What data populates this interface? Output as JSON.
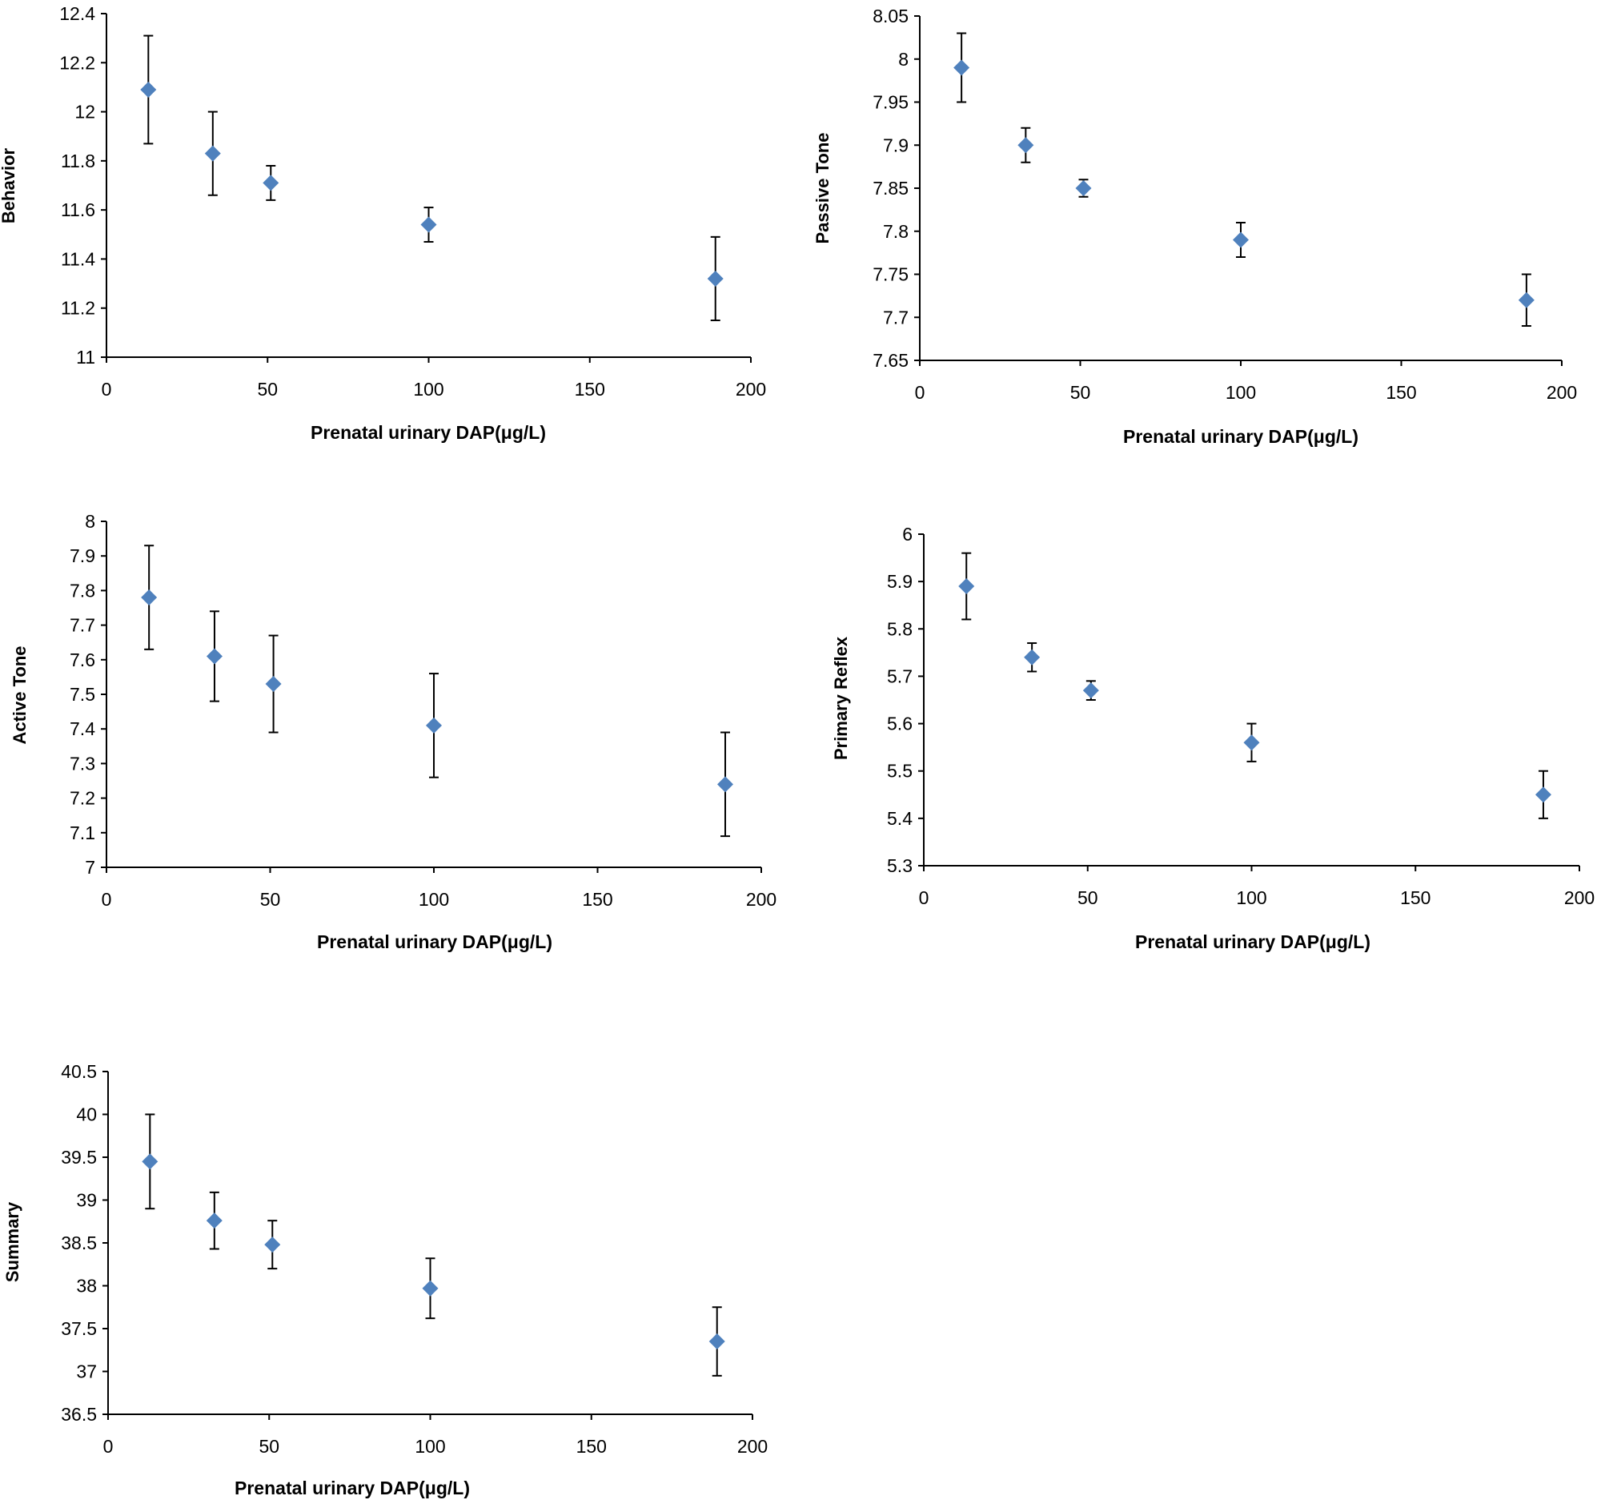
{
  "chart_data": [
    {
      "type": "scatter",
      "title": "",
      "xlabel": "Prenatal urinary DAP(μg/L)",
      "ylabel": "Behavior",
      "xlim": [
        0,
        200
      ],
      "ylim": [
        11,
        12.4
      ],
      "xticks": [
        0,
        50,
        100,
        150,
        200
      ],
      "yticks": [
        "11",
        "11.2",
        "11.4",
        "11.6",
        "11.8",
        "12",
        "12.2",
        "12.4"
      ],
      "marker_color": "#4f81bd",
      "points": [
        {
          "x": 13,
          "y": 12.09,
          "err": 0.22
        },
        {
          "x": 33,
          "y": 11.83,
          "err": 0.17
        },
        {
          "x": 51,
          "y": 11.71,
          "err": 0.07
        },
        {
          "x": 100,
          "y": 11.54,
          "err": 0.07
        },
        {
          "x": 189,
          "y": 11.32,
          "err": 0.17
        }
      ]
    },
    {
      "type": "scatter",
      "title": "",
      "xlabel": "Prenatal urinary DAP(μg/L)",
      "ylabel": "Passive Tone",
      "xlim": [
        0,
        200
      ],
      "ylim": [
        7.65,
        8.05
      ],
      "xticks": [
        0,
        50,
        100,
        150,
        200
      ],
      "yticks": [
        "7.65",
        "7.7",
        "7.75",
        "7.8",
        "7.85",
        "7.9",
        "7.95",
        "8",
        "8.05"
      ],
      "marker_color": "#4f81bd",
      "points": [
        {
          "x": 13,
          "y": 7.99,
          "err": 0.04
        },
        {
          "x": 33,
          "y": 7.9,
          "err": 0.02
        },
        {
          "x": 51,
          "y": 7.85,
          "err": 0.01
        },
        {
          "x": 100,
          "y": 7.79,
          "err": 0.02
        },
        {
          "x": 189,
          "y": 7.72,
          "err": 0.03
        }
      ]
    },
    {
      "type": "scatter",
      "title": "",
      "xlabel": "Prenatal urinary DAP(μg/L)",
      "ylabel": "Active Tone",
      "xlim": [
        0,
        200
      ],
      "ylim": [
        7,
        8
      ],
      "xticks": [
        0,
        50,
        100,
        150,
        200
      ],
      "yticks": [
        "7",
        "7.1",
        "7.2",
        "7.3",
        "7.4",
        "7.5",
        "7.6",
        "7.7",
        "7.8",
        "7.9",
        "8"
      ],
      "marker_color": "#4f81bd",
      "points": [
        {
          "x": 13,
          "y": 7.78,
          "err": 0.15
        },
        {
          "x": 33,
          "y": 7.61,
          "err": 0.13
        },
        {
          "x": 51,
          "y": 7.53,
          "err": 0.14
        },
        {
          "x": 100,
          "y": 7.41,
          "err": 0.15
        },
        {
          "x": 189,
          "y": 7.24,
          "err": 0.15
        }
      ]
    },
    {
      "type": "scatter",
      "title": "",
      "xlabel": "Prenatal urinary DAP(μg/L)",
      "ylabel": "Primary Reflex",
      "xlim": [
        0,
        200
      ],
      "ylim": [
        5.3,
        6
      ],
      "xticks": [
        0,
        50,
        100,
        150,
        200
      ],
      "yticks": [
        "5.3",
        "5.4",
        "5.5",
        "5.6",
        "5.7",
        "5.8",
        "5.9",
        "6"
      ],
      "marker_color": "#4f81bd",
      "points": [
        {
          "x": 13,
          "y": 5.89,
          "err": 0.07
        },
        {
          "x": 33,
          "y": 5.74,
          "err": 0.03
        },
        {
          "x": 51,
          "y": 5.67,
          "err": 0.02
        },
        {
          "x": 100,
          "y": 5.56,
          "err": 0.04
        },
        {
          "x": 189,
          "y": 5.45,
          "err": 0.05
        }
      ]
    },
    {
      "type": "scatter",
      "title": "",
      "xlabel": "Prenatal urinary DAP(μg/L)",
      "ylabel": "Summary",
      "xlim": [
        0,
        200
      ],
      "ylim": [
        36.5,
        40.5
      ],
      "xticks": [
        0,
        50,
        100,
        150,
        200
      ],
      "yticks": [
        "36.5",
        "37",
        "37.5",
        "38",
        "38.5",
        "39",
        "39.5",
        "40",
        "40.5"
      ],
      "marker_color": "#4f81bd",
      "points": [
        {
          "x": 13,
          "y": 39.45,
          "err": 0.55
        },
        {
          "x": 33,
          "y": 38.76,
          "err": 0.33
        },
        {
          "x": 51,
          "y": 38.48,
          "err": 0.28
        },
        {
          "x": 100,
          "y": 37.97,
          "err": 0.35
        },
        {
          "x": 189,
          "y": 37.35,
          "err": 0.4
        }
      ]
    }
  ]
}
